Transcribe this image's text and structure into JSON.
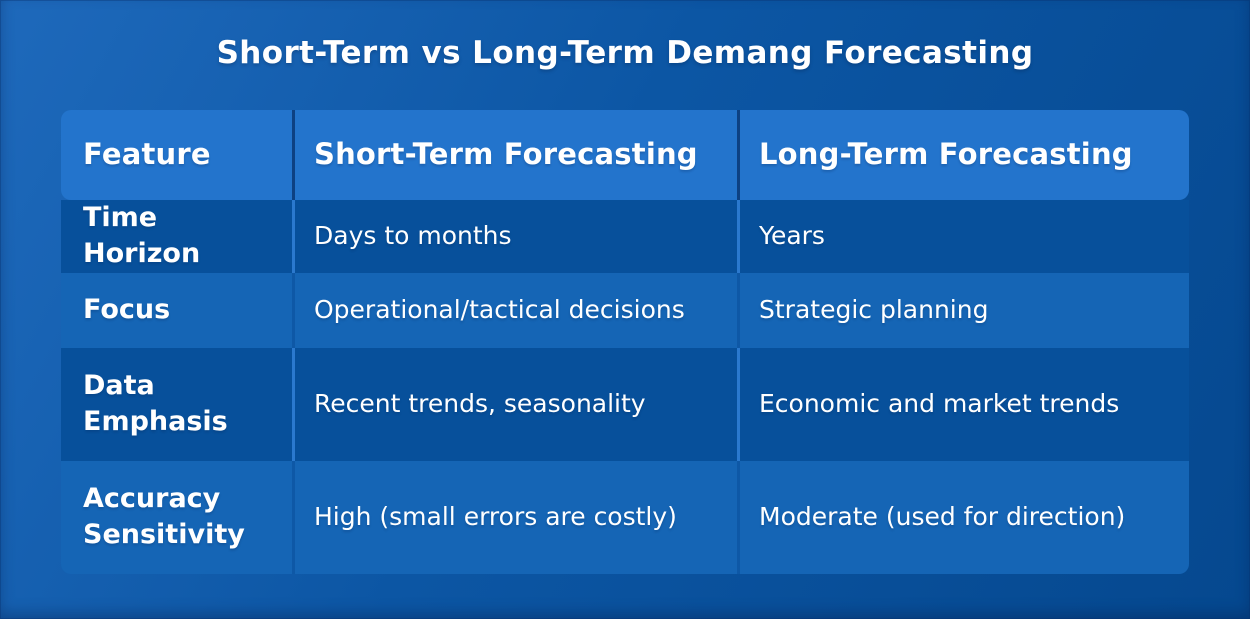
{
  "title": "Short-Term vs Long-Term Demang Forecasting",
  "table": {
    "headers": [
      "Feature",
      "Short-Term Forecasting",
      "Long-Term Forecasting"
    ],
    "rows": [
      {
        "feature": "Time Horizon",
        "short": "Days to months",
        "long": "Years"
      },
      {
        "feature": "Focus",
        "short": "Operational/tactical decisions",
        "long": "Strategic planning"
      },
      {
        "feature": "Data Emphasis",
        "short": "Recent trends, seasonality",
        "long": "Economic and market trends"
      },
      {
        "feature": "Accuracy Sensitivity",
        "short": "High (small errors are costly)",
        "long": "Moderate (used for direction)"
      }
    ]
  },
  "colors": {
    "background_top_left": "#1E69BB",
    "background_bottom_right": "#05488F",
    "header_bg": "#2374CC",
    "row_dark_bg": "#07509B",
    "row_light_bg": "#1565B5",
    "divider_header": "#0D4183",
    "divider_dark_row": "#2B79CE",
    "divider_light_row": "#0E58A6",
    "text": "#FFFFFF"
  }
}
